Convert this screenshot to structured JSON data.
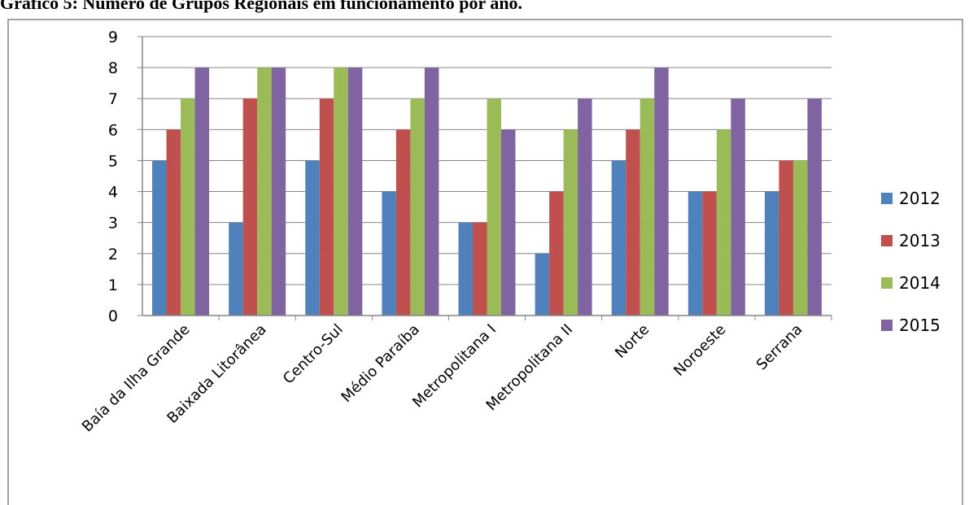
{
  "chart_data": {
    "type": "bar",
    "title": "Gráfico 5: Número de Grupos Regionais em funcionamento por ano.",
    "xlabel": "",
    "ylabel": "",
    "ylim": [
      0,
      9
    ],
    "yticks": [
      "0",
      "1",
      "2",
      "3",
      "4",
      "5",
      "6",
      "7",
      "8",
      "9"
    ],
    "grid": true,
    "legend_position": "right",
    "categories": [
      "Baía da Ilha Grande",
      "Baixada Litorânea",
      "Centro-Sul",
      "Médio Paraíba",
      "Metropolitana I",
      "Metropolitana II",
      "Norte",
      "Noroeste",
      "Serrana"
    ],
    "series": [
      {
        "name": "2012",
        "color": "#4F81BD",
        "values": [
          5,
          3,
          5,
          4,
          3,
          2,
          5,
          4,
          4
        ]
      },
      {
        "name": "2013",
        "color": "#C0504D",
        "values": [
          6,
          7,
          7,
          6,
          3,
          4,
          6,
          4,
          5
        ]
      },
      {
        "name": "2014",
        "color": "#9BBB59",
        "values": [
          7,
          8,
          8,
          7,
          7,
          6,
          7,
          6,
          5
        ]
      },
      {
        "name": "2015",
        "color": "#8064A2",
        "values": [
          8,
          8,
          8,
          8,
          6,
          7,
          8,
          7,
          7
        ]
      }
    ]
  }
}
